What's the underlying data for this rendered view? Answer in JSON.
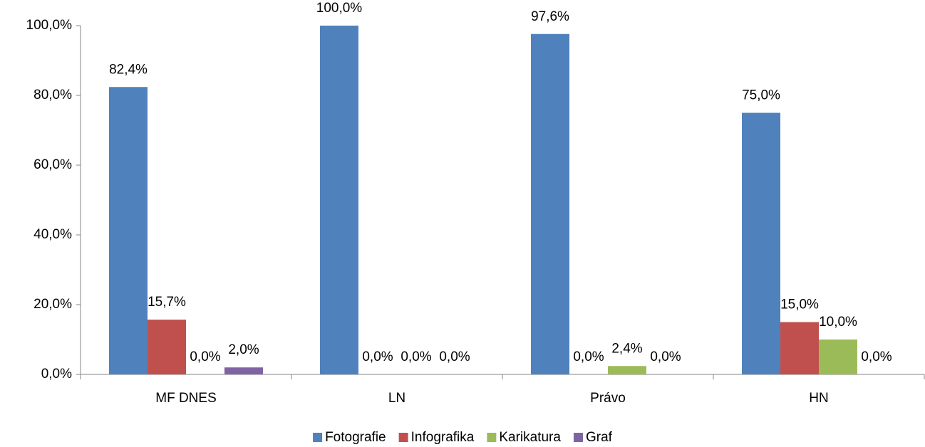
{
  "chart_data": {
    "type": "bar",
    "categories": [
      "MF DNES",
      "LN",
      "Právo",
      "HN"
    ],
    "series": [
      {
        "name": "Fotografie",
        "color": "#4f81bd",
        "values": [
          82.4,
          100,
          97.6,
          75
        ],
        "value_labels": [
          "82,4%",
          "100,0%",
          "97,6%",
          "75,0%"
        ]
      },
      {
        "name": "Infografika",
        "color": "#c0504d",
        "values": [
          15.7,
          0,
          0,
          15
        ],
        "value_labels": [
          "15,7%",
          "0,0%",
          "0,0%",
          "15,0%"
        ]
      },
      {
        "name": "Karikatura",
        "color": "#9bbb59",
        "values": [
          0,
          0,
          2.4,
          10
        ],
        "value_labels": [
          "0,0%",
          "0,0%",
          "2,4%",
          "10,0%"
        ]
      },
      {
        "name": "Graf",
        "color": "#8064a2",
        "values": [
          2,
          0,
          0,
          0
        ],
        "value_labels": [
          "2,0%",
          "0,0%",
          "0,0%",
          "0,0%"
        ]
      }
    ],
    "ylim": [
      0,
      100
    ],
    "yticks": [
      {
        "value": 0,
        "label": "0,0%"
      },
      {
        "value": 20,
        "label": "20,0%"
      },
      {
        "value": 40,
        "label": "40,0%"
      },
      {
        "value": 60,
        "label": "60,0%"
      },
      {
        "value": 80,
        "label": "80,0%"
      },
      {
        "value": 100,
        "label": "100,0%"
      }
    ],
    "legend": "bottom"
  }
}
